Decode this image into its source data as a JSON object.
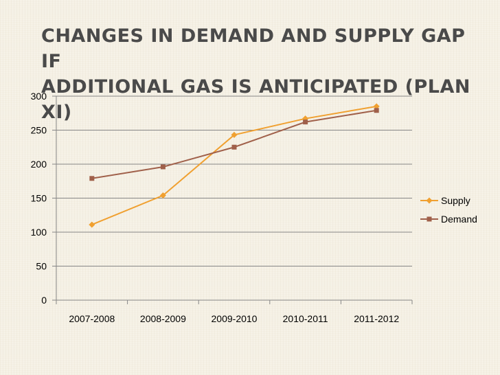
{
  "slide": {
    "title_line1": "CHANGES IN DEMAND AND SUPPLY GAP IF",
    "title_line2": "ADDITIONAL GAS IS ANTICIPATED (PLAN XI)"
  },
  "chart_data": {
    "type": "line",
    "categories": [
      "2007-2008",
      "2008-2009",
      "2009-2010",
      "2010-2011",
      "2011-2012"
    ],
    "series": [
      {
        "name": "Supply",
        "values": [
          111,
          154,
          243,
          267,
          285
        ],
        "color": "#f0a030",
        "marker": "diamond"
      },
      {
        "name": "Demand",
        "values": [
          179,
          196,
          225,
          262,
          279
        ],
        "color": "#a0604a",
        "marker": "square"
      }
    ],
    "ylim": [
      0,
      300
    ],
    "yticks": [
      0,
      50,
      100,
      150,
      200,
      250,
      300
    ],
    "grid": true,
    "legend": "right"
  }
}
